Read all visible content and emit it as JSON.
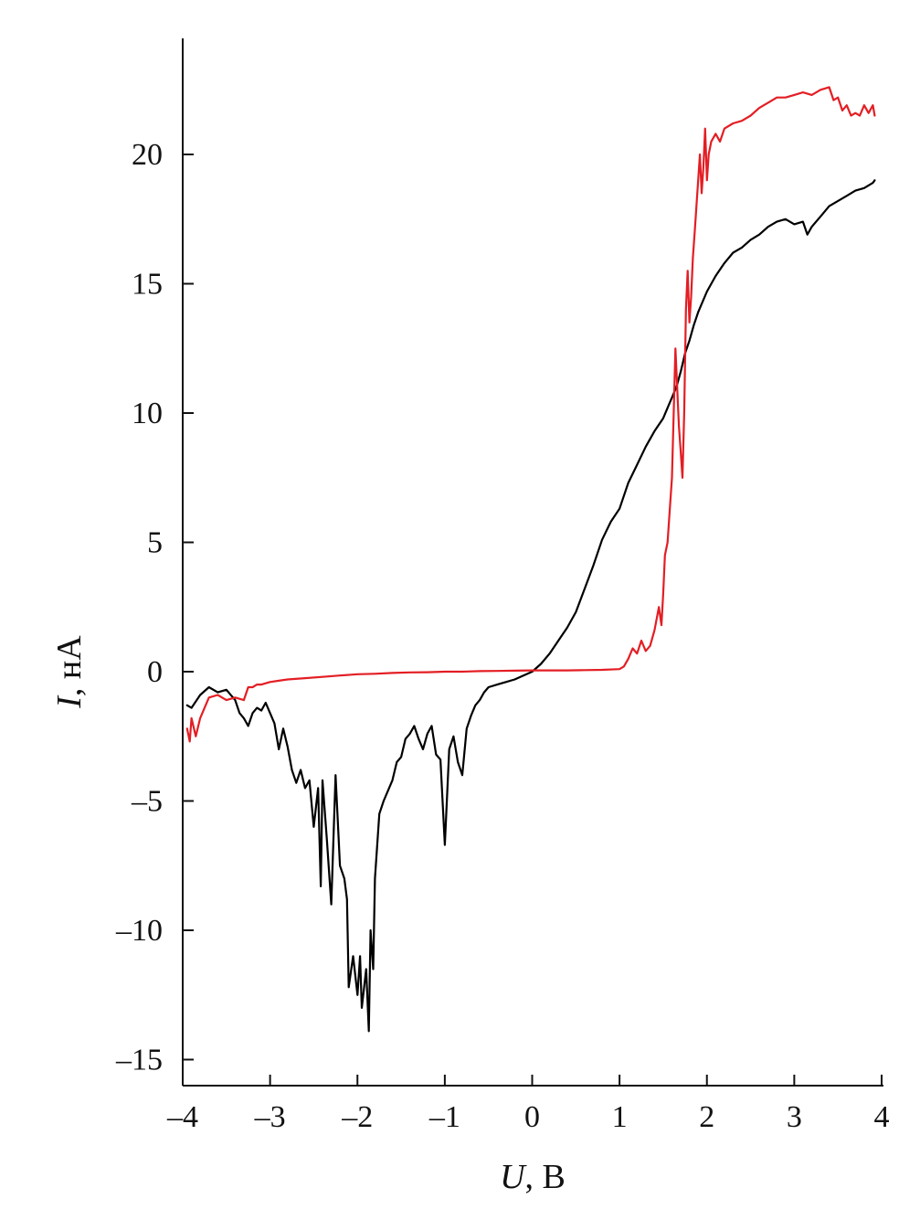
{
  "chart_data": {
    "type": "line",
    "xlabel": {
      "var": "U",
      "unit": ", В"
    },
    "ylabel": {
      "var": "I",
      "unit": ", нА"
    },
    "xlim": [
      -4,
      4
    ],
    "ylim": [
      -15.8,
      23.5
    ],
    "xticks": [
      -4,
      -3,
      -2,
      -1,
      0,
      1,
      2,
      3,
      4
    ],
    "yticks": [
      -15,
      -10,
      -5,
      0,
      5,
      10,
      15,
      20
    ],
    "xtick_labels": [
      "–4",
      "–3",
      "–2",
      "–1",
      "0",
      "1",
      "2",
      "3",
      "4"
    ],
    "ytick_labels": [
      "–15",
      "–10",
      "–5",
      "0",
      "5",
      "10",
      "15",
      "20"
    ],
    "grid": false,
    "series": [
      {
        "color": "#000000",
        "x": [
          -3.95,
          -3.9,
          -3.8,
          -3.7,
          -3.6,
          -3.5,
          -3.4,
          -3.35,
          -3.3,
          -3.25,
          -3.2,
          -3.15,
          -3.1,
          -3.05,
          -3.0,
          -2.95,
          -2.9,
          -2.85,
          -2.8,
          -2.75,
          -2.7,
          -2.65,
          -2.6,
          -2.55,
          -2.5,
          -2.45,
          -2.42,
          -2.4,
          -2.35,
          -2.3,
          -2.25,
          -2.2,
          -2.15,
          -2.12,
          -2.1,
          -2.05,
          -2.0,
          -1.97,
          -1.95,
          -1.9,
          -1.87,
          -1.85,
          -1.82,
          -1.8,
          -1.75,
          -1.7,
          -1.65,
          -1.6,
          -1.55,
          -1.5,
          -1.45,
          -1.4,
          -1.35,
          -1.3,
          -1.25,
          -1.2,
          -1.15,
          -1.1,
          -1.05,
          -1.0,
          -0.95,
          -0.9,
          -0.85,
          -0.8,
          -0.75,
          -0.7,
          -0.65,
          -0.6,
          -0.55,
          -0.5,
          -0.4,
          -0.3,
          -0.2,
          -0.1,
          0.0,
          0.1,
          0.2,
          0.3,
          0.4,
          0.5,
          0.6,
          0.7,
          0.8,
          0.9,
          1.0,
          1.1,
          1.2,
          1.3,
          1.4,
          1.5,
          1.55,
          1.6,
          1.65,
          1.7,
          1.75,
          1.8,
          1.85,
          1.9,
          2.0,
          2.1,
          2.2,
          2.3,
          2.4,
          2.5,
          2.6,
          2.7,
          2.8,
          2.9,
          3.0,
          3.1,
          3.15,
          3.2,
          3.3,
          3.4,
          3.5,
          3.6,
          3.7,
          3.8,
          3.9,
          3.92
        ],
        "y": [
          -1.3,
          -1.4,
          -0.9,
          -0.6,
          -0.8,
          -0.7,
          -1.1,
          -1.6,
          -1.8,
          -2.1,
          -1.6,
          -1.4,
          -1.5,
          -1.2,
          -1.6,
          -2.0,
          -3.0,
          -2.2,
          -2.9,
          -3.8,
          -4.3,
          -3.8,
          -4.5,
          -4.2,
          -6.0,
          -4.5,
          -8.3,
          -4.2,
          -6.5,
          -9.0,
          -4.0,
          -7.5,
          -8.0,
          -8.8,
          -12.2,
          -11.0,
          -12.5,
          -11.0,
          -13.0,
          -11.5,
          -13.9,
          -10.0,
          -11.5,
          -8.0,
          -5.5,
          -5.0,
          -4.6,
          -4.2,
          -3.5,
          -3.3,
          -2.6,
          -2.4,
          -2.1,
          -2.6,
          -3.0,
          -2.4,
          -2.1,
          -3.2,
          -3.4,
          -6.7,
          -3.0,
          -2.5,
          -3.5,
          -4.0,
          -2.2,
          -1.7,
          -1.3,
          -1.1,
          -0.8,
          -0.6,
          -0.5,
          -0.4,
          -0.3,
          -0.15,
          0.0,
          0.3,
          0.7,
          1.2,
          1.7,
          2.3,
          3.2,
          4.1,
          5.1,
          5.8,
          6.3,
          7.3,
          8.0,
          8.7,
          9.3,
          9.8,
          10.2,
          10.6,
          11.0,
          11.6,
          12.3,
          12.8,
          13.4,
          13.9,
          14.7,
          15.3,
          15.8,
          16.2,
          16.4,
          16.7,
          16.9,
          17.2,
          17.4,
          17.5,
          17.3,
          17.4,
          16.9,
          17.2,
          17.6,
          18.0,
          18.2,
          18.4,
          18.6,
          18.7,
          18.9,
          19.0
        ]
      },
      {
        "color": "#e31e24",
        "x": [
          -3.95,
          -3.92,
          -3.9,
          -3.85,
          -3.8,
          -3.75,
          -3.7,
          -3.6,
          -3.5,
          -3.4,
          -3.3,
          -3.25,
          -3.2,
          -3.15,
          -3.1,
          -3.0,
          -2.9,
          -2.8,
          -2.6,
          -2.4,
          -2.2,
          -2.0,
          -1.8,
          -1.6,
          -1.4,
          -1.2,
          -1.0,
          -0.8,
          -0.6,
          -0.4,
          -0.2,
          0.0,
          0.2,
          0.4,
          0.6,
          0.8,
          1.0,
          1.05,
          1.1,
          1.15,
          1.2,
          1.25,
          1.3,
          1.35,
          1.4,
          1.45,
          1.48,
          1.5,
          1.52,
          1.55,
          1.57,
          1.6,
          1.62,
          1.64,
          1.66,
          1.68,
          1.7,
          1.72,
          1.74,
          1.76,
          1.78,
          1.8,
          1.82,
          1.84,
          1.86,
          1.88,
          1.9,
          1.92,
          1.94,
          1.96,
          1.98,
          2.0,
          2.02,
          2.05,
          2.1,
          2.15,
          2.2,
          2.3,
          2.4,
          2.5,
          2.6,
          2.7,
          2.8,
          2.9,
          3.0,
          3.1,
          3.2,
          3.3,
          3.4,
          3.45,
          3.5,
          3.55,
          3.6,
          3.65,
          3.7,
          3.75,
          3.8,
          3.85,
          3.9,
          3.92
        ],
        "y": [
          -2.2,
          -2.7,
          -1.8,
          -2.5,
          -1.8,
          -1.4,
          -1.0,
          -0.9,
          -1.1,
          -1.0,
          -1.1,
          -0.6,
          -0.6,
          -0.5,
          -0.5,
          -0.4,
          -0.35,
          -0.3,
          -0.25,
          -0.2,
          -0.15,
          -0.1,
          -0.08,
          -0.05,
          -0.03,
          -0.02,
          0.0,
          0.0,
          0.02,
          0.03,
          0.04,
          0.05,
          0.05,
          0.05,
          0.06,
          0.07,
          0.1,
          0.2,
          0.5,
          0.9,
          0.7,
          1.2,
          0.8,
          1.0,
          1.6,
          2.5,
          1.8,
          3.0,
          4.5,
          5.0,
          6.0,
          7.5,
          10.0,
          12.5,
          11.0,
          9.5,
          8.5,
          7.5,
          10.0,
          14.0,
          15.5,
          13.5,
          14.5,
          16.0,
          17.0,
          18.0,
          19.0,
          20.0,
          18.5,
          19.5,
          21.0,
          19.0,
          20.0,
          20.5,
          20.8,
          20.5,
          21.0,
          21.2,
          21.3,
          21.5,
          21.8,
          22.0,
          22.2,
          22.2,
          22.3,
          22.4,
          22.3,
          22.5,
          22.6,
          22.1,
          22.2,
          21.7,
          21.9,
          21.5,
          21.6,
          21.5,
          21.9,
          21.6,
          21.9,
          21.5
        ]
      }
    ]
  }
}
